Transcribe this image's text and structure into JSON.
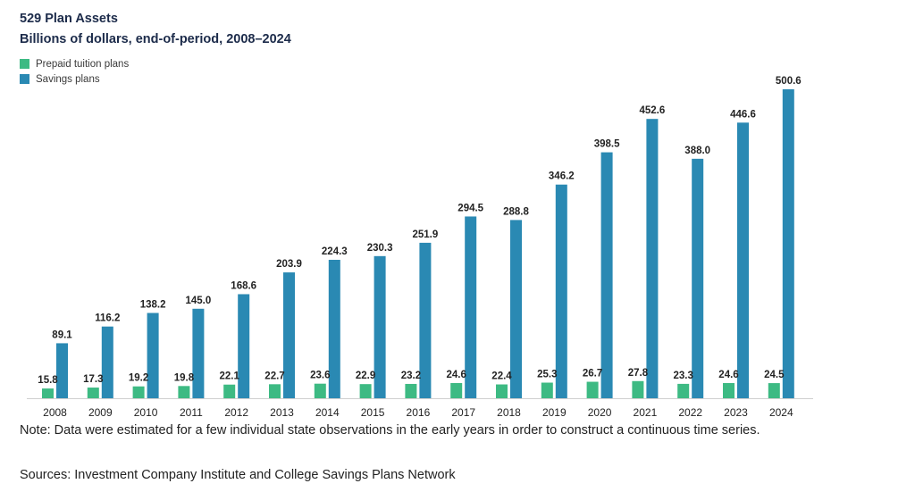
{
  "header": {
    "title": "529 Plan Assets",
    "subtitle": "Billions of dollars, end-of-period, 2008–2024"
  },
  "colors": {
    "prepaid": "#3dba83",
    "savings": "#2a89b3"
  },
  "chart_data": {
    "type": "bar",
    "title": "529 Plan Assets",
    "subtitle": "Billions of dollars, end-of-period, 2008–2024",
    "categories": [
      "2008",
      "2009",
      "2010",
      "2011",
      "2012",
      "2013",
      "2014",
      "2015",
      "2016",
      "2017",
      "2018",
      "2019",
      "2020",
      "2021",
      "2022",
      "2023",
      "2024"
    ],
    "series": [
      {
        "name": "Prepaid tuition plans",
        "values": [
          15.8,
          17.3,
          19.2,
          19.8,
          22.1,
          22.7,
          23.6,
          22.9,
          23.2,
          24.6,
          22.4,
          25.3,
          26.7,
          27.8,
          23.3,
          24.6,
          24.5
        ]
      },
      {
        "name": "Savings plans",
        "values": [
          89.1,
          116.2,
          138.2,
          145.0,
          168.6,
          203.9,
          224.3,
          230.3,
          251.9,
          294.5,
          288.8,
          346.2,
          398.5,
          452.6,
          388.0,
          446.6,
          500.6
        ]
      }
    ],
    "labels": {
      "prepaid": [
        "15.8",
        "17.3",
        "19.2",
        "19.8",
        "22.1",
        "22.7",
        "23.6",
        "22.9",
        "23.2",
        "24.6",
        "22.4",
        "25.3",
        "26.7",
        "27.8",
        "23.3",
        "24.6",
        "24.5"
      ],
      "savings": [
        "89.1",
        "116.2",
        "138.2",
        "145.0",
        "168.6",
        "203.9",
        "224.3",
        "230.3",
        "251.9",
        "294.5",
        "288.8",
        "346.2",
        "398.5",
        "452.6",
        "388.0",
        "446.6",
        "500.6"
      ]
    },
    "xlabel": "",
    "ylabel": "",
    "ylim": [
      0,
      500.6
    ],
    "grid": false,
    "legend_position": "top-left"
  },
  "footer": {
    "note": "Note: Data were estimated for a few individual state observations in the early years in order to construct a continuous time series.",
    "sources": "Sources: Investment Company Institute and College Savings Plans Network"
  }
}
